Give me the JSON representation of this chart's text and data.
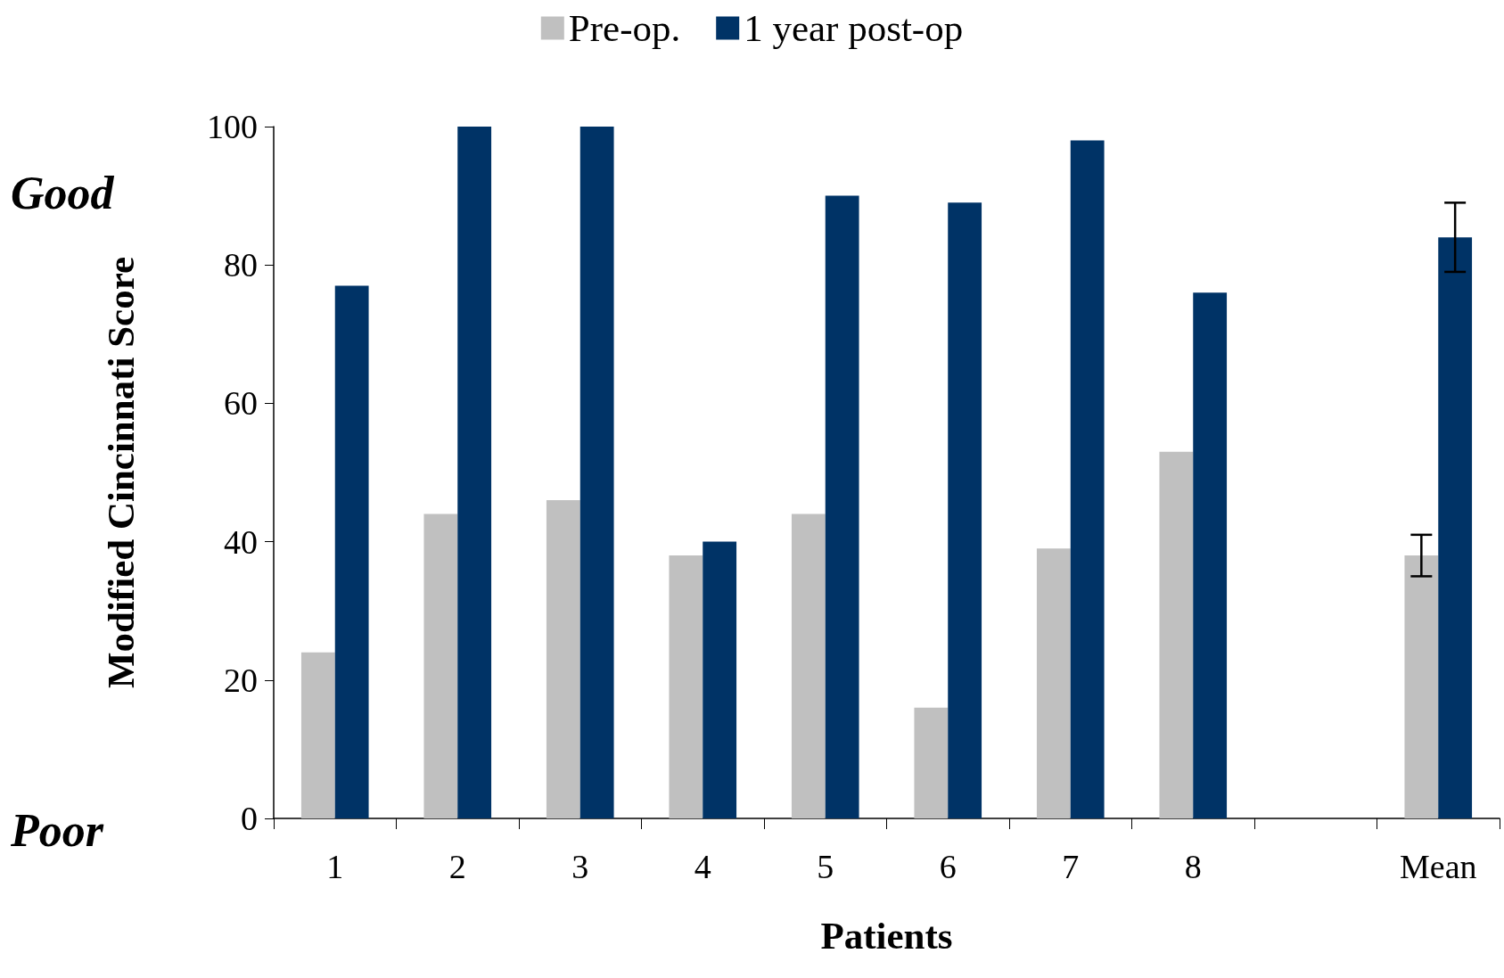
{
  "chart_data": {
    "type": "bar",
    "xlabel": "Patients",
    "ylabel": "Modified Cincinnati Score",
    "categories": [
      "1",
      "2",
      "3",
      "4",
      "5",
      "6",
      "7",
      "8",
      null,
      "Mean"
    ],
    "series": [
      {
        "name": "Pre-op.",
        "color": "#c0c0c0",
        "values": [
          24,
          44,
          46,
          38,
          44,
          16,
          39,
          53,
          null,
          38
        ],
        "errors": [
          null,
          null,
          null,
          null,
          null,
          null,
          null,
          null,
          null,
          3
        ]
      },
      {
        "name": "1 year post-op",
        "color": "#003366",
        "values": [
          77,
          100,
          100,
          40,
          90,
          89,
          98,
          76,
          null,
          84
        ],
        "errors": [
          null,
          null,
          null,
          null,
          null,
          null,
          null,
          null,
          null,
          5
        ]
      }
    ],
    "ylim": [
      0,
      100
    ],
    "yticks": [
      0,
      20,
      40,
      60,
      80,
      100
    ],
    "grid": false,
    "legend": "top",
    "annotations": [
      "Good",
      "Poor"
    ]
  }
}
